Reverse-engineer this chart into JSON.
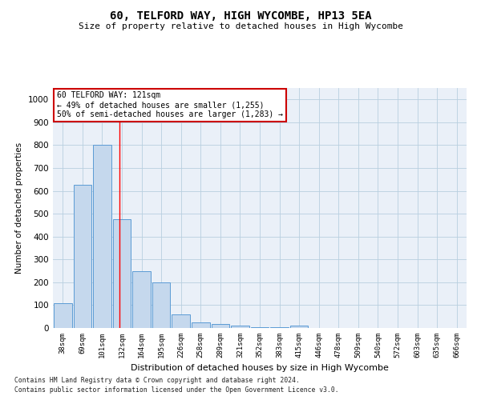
{
  "title": "60, TELFORD WAY, HIGH WYCOMBE, HP13 5EA",
  "subtitle": "Size of property relative to detached houses in High Wycombe",
  "xlabel": "Distribution of detached houses by size in High Wycombe",
  "ylabel": "Number of detached properties",
  "categories": [
    "38sqm",
    "69sqm",
    "101sqm",
    "132sqm",
    "164sqm",
    "195sqm",
    "226sqm",
    "258sqm",
    "289sqm",
    "321sqm",
    "352sqm",
    "383sqm",
    "415sqm",
    "446sqm",
    "478sqm",
    "509sqm",
    "540sqm",
    "572sqm",
    "603sqm",
    "635sqm",
    "666sqm"
  ],
  "values": [
    110,
    625,
    800,
    475,
    250,
    200,
    60,
    25,
    18,
    10,
    5,
    5,
    10,
    0,
    0,
    0,
    0,
    0,
    0,
    0,
    0
  ],
  "bar_color": "#c5d8ed",
  "bar_edge_color": "#5b9bd5",
  "red_line_index": 2.87,
  "annotation_title": "60 TELFORD WAY: 121sqm",
  "annotation_line1": "← 49% of detached houses are smaller (1,255)",
  "annotation_line2": "50% of semi-detached houses are larger (1,283) →",
  "annotation_box_color": "#ffffff",
  "annotation_box_edge_color": "#cc0000",
  "ylim": [
    0,
    1050
  ],
  "footnote1": "Contains HM Land Registry data © Crown copyright and database right 2024.",
  "footnote2": "Contains public sector information licensed under the Open Government Licence v3.0.",
  "plot_bg_color": "#eaf0f8",
  "grid_color": "#b8cfe0"
}
